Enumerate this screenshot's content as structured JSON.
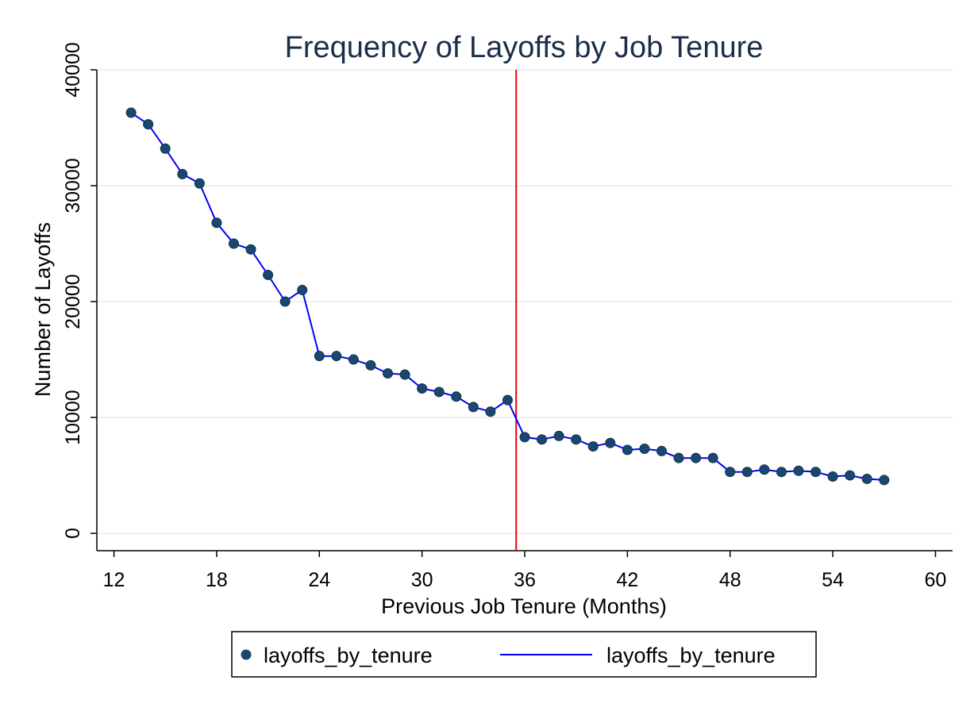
{
  "chart_data": {
    "type": "line",
    "title": "Frequency of Layoffs by Job Tenure",
    "xlabel": "Previous Job Tenure (Months)",
    "ylabel": "Number of Layoffs",
    "xlim": [
      11,
      61
    ],
    "ylim": [
      -1500,
      40000
    ],
    "x_ticks": [
      12,
      18,
      24,
      30,
      36,
      42,
      48,
      54,
      60
    ],
    "y_ticks": [
      0,
      10000,
      20000,
      30000,
      40000
    ],
    "grid": "horizontal",
    "vline": {
      "x": 35.5,
      "color": "#e8000b"
    },
    "series": [
      {
        "name": "layoffs_by_tenure",
        "marker_color": "#1a476f",
        "line_color": "#0000ff",
        "x": [
          13,
          14,
          15,
          16,
          17,
          18,
          19,
          20,
          21,
          22,
          23,
          24,
          25,
          26,
          27,
          28,
          29,
          30,
          31,
          32,
          33,
          34,
          35,
          36,
          37,
          38,
          39,
          40,
          41,
          42,
          43,
          44,
          45,
          46,
          47,
          48,
          49,
          50,
          51,
          52,
          53,
          54,
          55,
          56,
          57
        ],
        "values": [
          36300,
          35300,
          33200,
          31000,
          30200,
          26800,
          25000,
          24500,
          22300,
          20000,
          21000,
          15300,
          15300,
          15000,
          14500,
          13800,
          13700,
          12500,
          12200,
          11800,
          10900,
          10500,
          11500,
          8300,
          8100,
          8400,
          8100,
          7500,
          7800,
          7200,
          7300,
          7100,
          6500,
          6500,
          6500,
          5300,
          5300,
          5500,
          5300,
          5400,
          5300,
          4900,
          5000,
          4700,
          4600
        ]
      }
    ],
    "legend": {
      "placement": "bottom",
      "entries": [
        "layoffs_by_tenure",
        "layoffs_by_tenure"
      ]
    }
  }
}
